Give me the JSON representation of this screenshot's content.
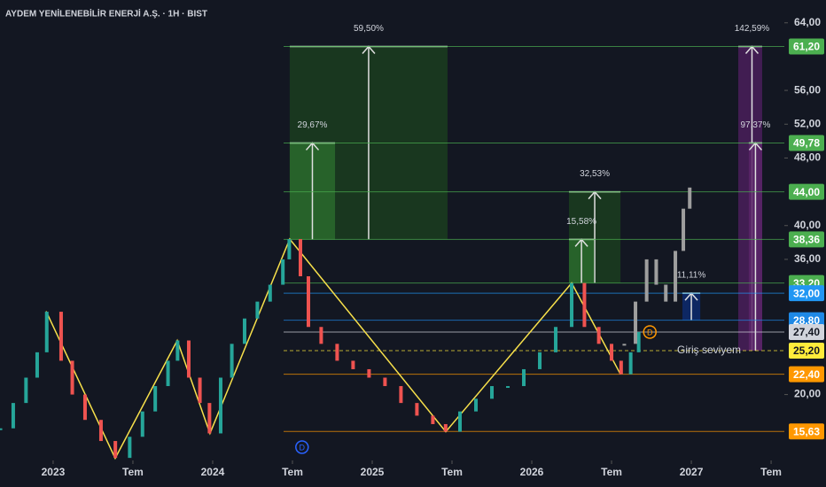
{
  "chart_data": {
    "type": "candlestick",
    "title": "AYDEM YENİLENEBİLİR ENERJİ A.Ş. · 1H · BIST",
    "xlim": [
      2022.667,
      2027.583
    ],
    "ylim": [
      12.2,
      66.7
    ],
    "xticks": [
      {
        "value": 2023,
        "label": "2023"
      },
      {
        "value": 2023.5,
        "label": "Tem"
      },
      {
        "value": 2024,
        "label": "2024"
      },
      {
        "value": 2024.5,
        "label": "Tem"
      },
      {
        "value": 2025,
        "label": "2025"
      },
      {
        "value": 2025.5,
        "label": "Tem"
      },
      {
        "value": 2026,
        "label": "2026"
      },
      {
        "value": 2026.5,
        "label": "Tem"
      },
      {
        "value": 2027,
        "label": "2027"
      },
      {
        "value": 2027.5,
        "label": "Tem"
      }
    ],
    "yticks": [
      {
        "value": 64,
        "label": "64,00"
      },
      {
        "value": 56,
        "label": "56,00"
      },
      {
        "value": 52,
        "label": "52,00"
      },
      {
        "value": 48,
        "label": "48,00"
      },
      {
        "value": 40,
        "label": "40,00"
      },
      {
        "value": 36,
        "label": "36,00"
      },
      {
        "value": 20,
        "label": "20,00"
      }
    ],
    "up_color": "#26a69a",
    "down_color": "#ef5350",
    "price": {
      "x": [
        2022.67,
        2022.75,
        2022.83,
        2022.9,
        2022.96,
        2023.05,
        2023.12,
        2023.2,
        2023.3,
        2023.39,
        2023.48,
        2023.56,
        2023.64,
        2023.72,
        2023.78,
        2023.85,
        2023.92,
        2023.98,
        2024.05,
        2024.12,
        2024.2,
        2024.28,
        2024.36,
        2024.44,
        2024.48,
        2024.55,
        2024.6,
        2024.68,
        2024.78,
        2024.88,
        2024.98,
        2025.08,
        2025.18,
        2025.28,
        2025.38,
        2025.46,
        2025.55,
        2025.65,
        2025.75,
        2025.85,
        2025.95,
        2026.05,
        2026.15,
        2026.25,
        2026.33,
        2026.42,
        2026.5,
        2026.56,
        2026.62,
        2026.67
      ],
      "close": [
        16,
        19,
        22,
        25,
        29.8,
        24,
        20,
        17,
        14.5,
        12.5,
        15,
        18,
        21,
        24,
        26.4,
        22,
        19,
        15.4,
        22,
        26,
        29,
        31,
        33,
        36,
        38.4,
        34,
        28,
        26,
        24,
        23,
        22,
        21,
        19,
        17.5,
        16.5,
        15.6,
        18,
        19.5,
        21,
        21,
        23,
        25,
        28,
        33.2,
        28,
        26,
        24,
        22.4,
        25,
        27.4
      ]
    },
    "projection": {
      "color": "#9e9e9e",
      "x": [
        2026.58,
        2026.65,
        2026.72,
        2026.78,
        2026.84,
        2026.9,
        2026.95,
        2026.99
      ],
      "close": [
        26,
        31,
        36,
        33,
        31,
        37,
        42,
        44.5
      ]
    },
    "zigzag": {
      "color": "#f7e04b",
      "x": [
        2022.956,
        2023.389,
        2023.778,
        2023.983,
        2024.483,
        2025.461,
        2026.25,
        2026.556
      ],
      "y": [
        29.85,
        12.46,
        26.4,
        15.4,
        38.4,
        15.6,
        33.2,
        22.4
      ]
    },
    "boxes": [
      {
        "x": [
          2024.483,
          2025.472
        ],
        "y": [
          38.36,
          61.2
        ],
        "label": "59,50%",
        "color": "#1b3d1e"
      },
      {
        "x": [
          2024.483,
          2024.767
        ],
        "y": [
          38.36,
          49.78
        ],
        "label": "29,67%",
        "color": "#2a6a2d"
      },
      {
        "x": [
          2026.233,
          2026.556
        ],
        "y": [
          33.2,
          44.0
        ],
        "label": "32,53%",
        "color": "#1b3d1e"
      },
      {
        "x": [
          2026.233,
          2026.39
        ],
        "y": [
          33.2,
          38.36
        ],
        "label": "15,58%",
        "color": "#2a6a2d"
      },
      {
        "x": [
          2026.944,
          2027.056
        ],
        "y": [
          28.8,
          32.0
        ],
        "label": "11,11%",
        "color": "#0d2a6e"
      },
      {
        "x": [
          2027.294,
          2027.444
        ],
        "y": [
          25.2,
          61.2
        ],
        "label": "142,59%",
        "color": "#4a1e5a"
      },
      {
        "x": [
          2027.36,
          2027.444
        ],
        "y": [
          25.2,
          49.78
        ],
        "label": "97,37%",
        "color": "#5a2468"
      }
    ],
    "levels": [
      {
        "value": 61.2,
        "label": "61,20",
        "color": "#4caf50"
      },
      {
        "value": 49.78,
        "label": "49,78",
        "color": "#4caf50"
      },
      {
        "value": 44.0,
        "label": "44,00",
        "color": "#4caf50"
      },
      {
        "value": 38.36,
        "label": "38,36",
        "color": "#4caf50"
      },
      {
        "value": 33.2,
        "label": "33,20",
        "color": "#4caf50"
      },
      {
        "value": 32.0,
        "label": "32,00",
        "color": "#2196f3"
      },
      {
        "value": 28.8,
        "label": "28,80",
        "color": "#1e88e5"
      },
      {
        "value": 27.4,
        "label": "27,40",
        "color": "#d1d4dc"
      },
      {
        "value": 25.2,
        "label": "25,20",
        "color": "#ffeb3b"
      },
      {
        "value": 22.4,
        "label": "22,40",
        "color": "#ff9800"
      },
      {
        "value": 15.63,
        "label": "15,63",
        "color": "#ff9800"
      }
    ],
    "entry_note": "Giriş seviyem",
    "events": [
      {
        "x": 2024.56,
        "label": "D",
        "color": "#2962ff"
      },
      {
        "x": 2026.74,
        "y": 27.4,
        "label": "D",
        "color": "#ff9800"
      }
    ]
  }
}
